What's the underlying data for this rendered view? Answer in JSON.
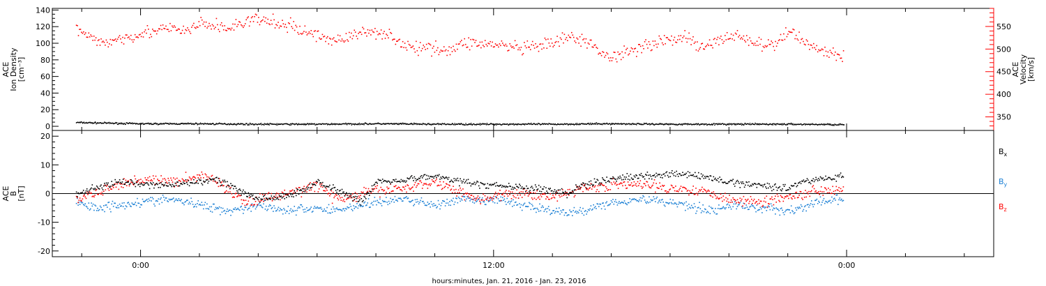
{
  "chart_data": [
    {
      "type": "scatter",
      "panel": "top",
      "ylabel_left": [
        "ACE",
        "Ion Density",
        "[cm⁻³]"
      ],
      "ylabel_right": [
        "ACE",
        "Velocity",
        "[km/s]"
      ],
      "y_left_lim": [
        -5,
        142
      ],
      "y_left_ticks": [
        0,
        20,
        40,
        60,
        80,
        100,
        120,
        140
      ],
      "y_right_lim": [
        320,
        590
      ],
      "y_right_ticks": [
        350,
        400,
        450,
        500,
        550
      ],
      "colors": {
        "density": "#000000",
        "velocity": "#ff0000"
      },
      "series": [
        {
          "name": "",
          "axis": "left",
          "color": "#000000",
          "x": [
            -2.2,
            0,
            2,
            4,
            6,
            8,
            10,
            12,
            14,
            16,
            18,
            20,
            22,
            23.9
          ],
          "y": [
            4.5,
            3,
            3,
            2.5,
            2.5,
            3,
            2.5,
            2.5,
            2.5,
            3,
            2.5,
            2.5,
            2.5,
            2
          ]
        },
        {
          "name": "",
          "axis": "right",
          "color": "#ff0000",
          "x": [
            -2.2,
            -1.7,
            -1.2,
            -0.6,
            0,
            0.5,
            1,
            1.5,
            2,
            2.5,
            3,
            3.5,
            4,
            4.5,
            5,
            5.5,
            6,
            6.5,
            7,
            7.5,
            8,
            8.5,
            9,
            9.5,
            10,
            10.5,
            11,
            11.5,
            12,
            12.5,
            13,
            13.5,
            14,
            14.5,
            15,
            15.5,
            16,
            16.5,
            17,
            17.5,
            18,
            18.5,
            19,
            19.5,
            20,
            20.5,
            21,
            21.5,
            22,
            22.5,
            23,
            23.5,
            23.9
          ],
          "y": [
            545,
            520,
            515,
            525,
            535,
            540,
            545,
            538,
            555,
            552,
            545,
            560,
            565,
            558,
            552,
            540,
            530,
            520,
            525,
            535,
            540,
            530,
            505,
            500,
            505,
            495,
            515,
            512,
            510,
            505,
            500,
            505,
            512,
            525,
            520,
            500,
            480,
            495,
            505,
            515,
            520,
            530,
            500,
            515,
            530,
            525,
            510,
            505,
            540,
            520,
            500,
            490,
            480
          ]
        }
      ]
    },
    {
      "type": "scatter",
      "panel": "bottom",
      "ylabel_left": [
        "ACE",
        "B",
        "[nT]"
      ],
      "ylim": [
        -22,
        22
      ],
      "y_ticks": [
        -20,
        -10,
        0,
        10,
        20
      ],
      "xlabel": "hours:minutes, Jan. 21, 2016 - Jan. 23, 2016",
      "x_ticks": [
        0,
        12,
        24
      ],
      "x_tick_labels": [
        "0:00",
        "12:00",
        "0:00"
      ],
      "xlim": [
        -3,
        29
      ],
      "colors": {
        "bx": "#000000",
        "by": "#1a7fd4",
        "bz": "#ff0000"
      },
      "series": [
        {
          "name": "B",
          "sub": "x",
          "color": "#000000",
          "x": [
            -2.2,
            -1.5,
            -0.8,
            0,
            1,
            2,
            2.5,
            3,
            3.5,
            4,
            5,
            6,
            6.5,
            7,
            7.5,
            8,
            9,
            10,
            10.5,
            11,
            11.5,
            12,
            13,
            14,
            14.5,
            15,
            16,
            17,
            18,
            19,
            19.5,
            20,
            21,
            22,
            22.5,
            23,
            23.9
          ],
          "y": [
            0,
            2,
            4,
            3,
            3,
            4,
            5,
            3,
            0,
            -2,
            -1,
            4,
            2,
            0,
            -3,
            4,
            5,
            6,
            5,
            4,
            3,
            3,
            2,
            1,
            0,
            3,
            5,
            6,
            7,
            6,
            5,
            4,
            3,
            2,
            4,
            5,
            6
          ]
        },
        {
          "name": "B",
          "sub": "y",
          "color": "#1a7fd4",
          "x": [
            -2.2,
            -1.5,
            -0.8,
            0,
            1,
            2,
            2.5,
            3,
            3.5,
            4,
            5,
            6,
            6.5,
            7,
            7.5,
            8,
            9,
            10,
            10.5,
            11,
            11.5,
            12,
            13,
            14,
            14.5,
            15,
            16,
            17,
            18,
            19,
            19.5,
            20,
            21,
            22,
            22.5,
            23,
            23.9
          ],
          "y": [
            -3,
            -5,
            -4,
            -3,
            -2,
            -4,
            -5,
            -6,
            -5,
            -4,
            -6,
            -5,
            -6,
            -5,
            -4,
            -3,
            -2,
            -4,
            -3,
            -2,
            -3,
            -2,
            -4,
            -6,
            -7,
            -6,
            -3,
            -2,
            -3,
            -5,
            -6,
            -4,
            -5,
            -6,
            -5,
            -3,
            -2
          ]
        },
        {
          "name": "B",
          "sub": "z",
          "color": "#ff0000",
          "x": [
            -2.2,
            -1.5,
            -0.8,
            0,
            1,
            2,
            2.5,
            3,
            3.5,
            4,
            5,
            6,
            6.5,
            7,
            7.5,
            8,
            9,
            10,
            10.5,
            11,
            11.5,
            12,
            13,
            14,
            14.5,
            15,
            16,
            17,
            18,
            19,
            19.5,
            20,
            21,
            22,
            22.5,
            23,
            23.9
          ],
          "y": [
            -2,
            0,
            3,
            5,
            4,
            6,
            5,
            1,
            -3,
            -2,
            0,
            3,
            -1,
            -2,
            0,
            1,
            2,
            4,
            2,
            0,
            -2,
            -1,
            0,
            -1,
            0,
            2,
            3,
            3,
            2,
            1,
            0,
            -2,
            -3,
            -1,
            0,
            1,
            2
          ]
        }
      ]
    }
  ]
}
